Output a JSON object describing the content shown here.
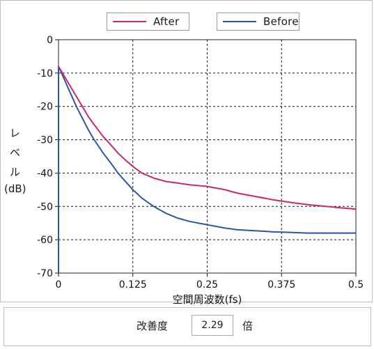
{
  "chart_data": {
    "type": "line",
    "xlabel": "空間周波数(fs)",
    "ylabel": [
      "レ",
      "ベ",
      "ル",
      "(dB)"
    ],
    "xlim": [
      0,
      0.5
    ],
    "ylim": [
      -70,
      0
    ],
    "x_ticks": [
      0,
      0.125,
      0.25,
      0.375,
      0.5
    ],
    "x_tick_labels": [
      "0",
      "0.125",
      "0.25",
      "0.375",
      "0.5"
    ],
    "y_ticks": [
      0,
      -10,
      -20,
      -30,
      -40,
      -50,
      -60,
      -70
    ],
    "y_tick_labels": [
      "0",
      "-10",
      "-20",
      "-30",
      "-40",
      "-50",
      "-60",
      "-70"
    ],
    "grid": true,
    "legend_position": "top",
    "series": [
      {
        "name": "After",
        "color": "#c8286e",
        "x": [
          0,
          0.005,
          0.01,
          0.02,
          0.03,
          0.04,
          0.05,
          0.06,
          0.075,
          0.09,
          0.1,
          0.115,
          0.125,
          0.14,
          0.16,
          0.18,
          0.2,
          0.22,
          0.25,
          0.28,
          0.3,
          0.33,
          0.36,
          0.39,
          0.42,
          0.45,
          0.48,
          0.5
        ],
        "y": [
          -8,
          -9.5,
          -11,
          -14,
          -17,
          -20,
          -23,
          -25.5,
          -29,
          -32,
          -34,
          -36.5,
          -38,
          -40,
          -41.5,
          -42.5,
          -43,
          -43.5,
          -44,
          -45,
          -46,
          -47,
          -48,
          -48.8,
          -49.5,
          -50,
          -50.5,
          -50.8
        ]
      },
      {
        "name": "Before",
        "color": "#2a56a8",
        "x": [
          0,
          0.005,
          0.01,
          0.02,
          0.03,
          0.04,
          0.05,
          0.06,
          0.075,
          0.09,
          0.1,
          0.115,
          0.125,
          0.14,
          0.16,
          0.18,
          0.2,
          0.22,
          0.25,
          0.28,
          0.3,
          0.33,
          0.36,
          0.39,
          0.42,
          0.45,
          0.48,
          0.5
        ],
        "y": [
          -8,
          -10,
          -12,
          -16,
          -20,
          -23.5,
          -27,
          -30,
          -34,
          -37.5,
          -40,
          -43,
          -45,
          -47.5,
          -50,
          -52,
          -53.5,
          -54.5,
          -55.5,
          -56.5,
          -57,
          -57.3,
          -57.6,
          -57.8,
          -58,
          -58,
          -58,
          -58
        ]
      }
    ]
  },
  "legend": {
    "after_label": "After",
    "before_label": "Before"
  },
  "footer": {
    "improvement_label": "改善度",
    "improvement_value": "2.29",
    "improvement_unit": "倍"
  }
}
